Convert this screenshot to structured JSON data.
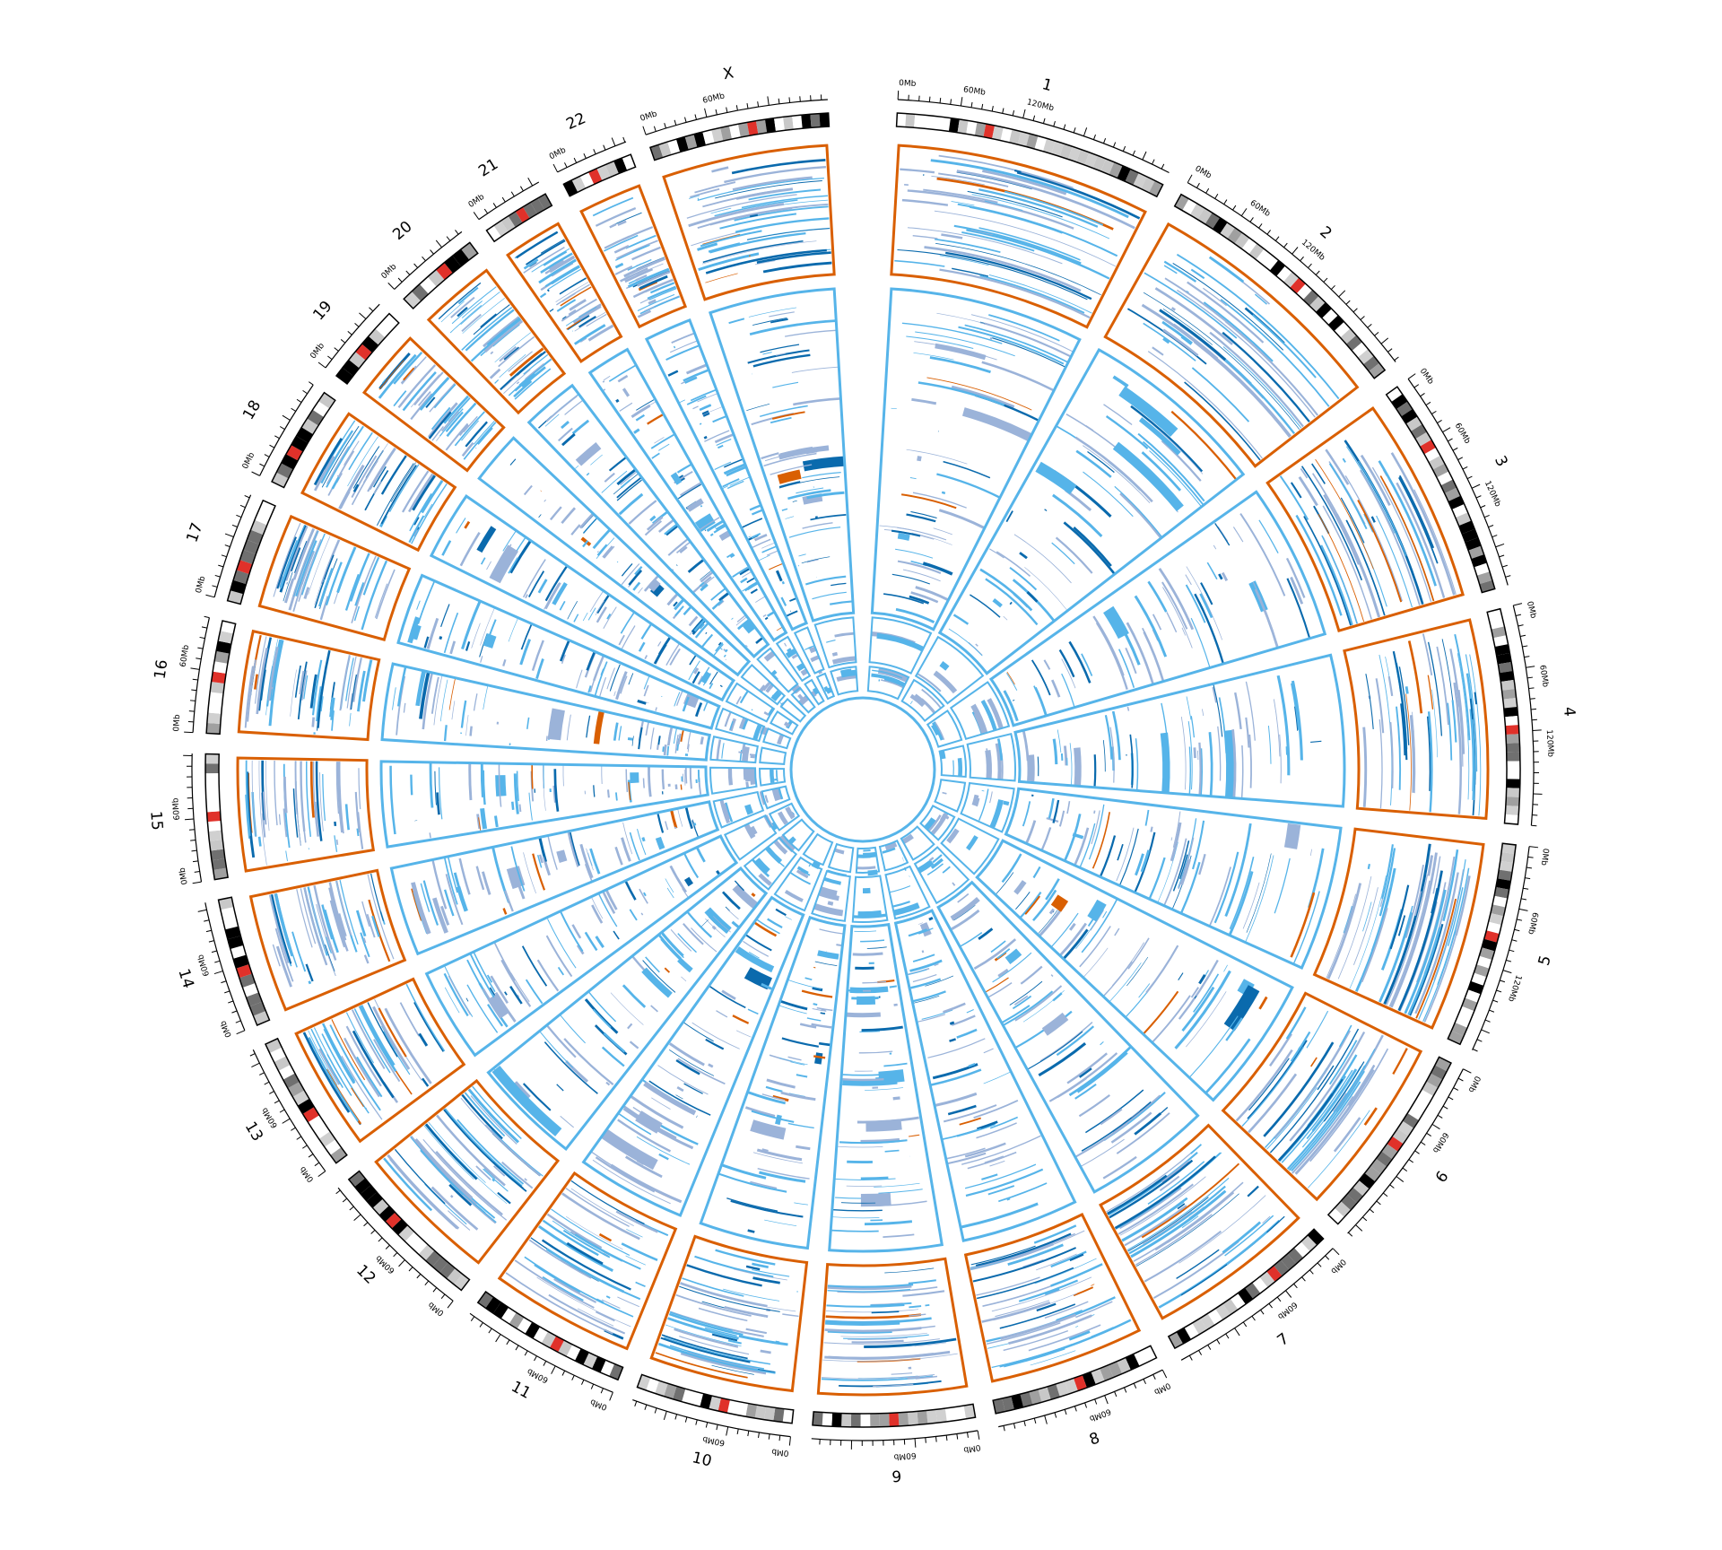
{
  "colors": {
    "orange_track": "#d95f02",
    "blue_track": "#56b4e9",
    "lavender": "#9bb3d9",
    "dark_blue": "#0a6aad",
    "centromere": "#e0312a"
  },
  "chromosomes": [
    {
      "label": "1",
      "length_mb": 248,
      "ticks": [
        "0Mb",
        "60Mb",
        "120Mb"
      ]
    },
    {
      "label": "2",
      "length_mb": 242,
      "ticks": [
        "0Mb",
        "60Mb",
        "120Mb"
      ]
    },
    {
      "label": "3",
      "length_mb": 198,
      "ticks": [
        "0Mb",
        "60Mb",
        "120Mb"
      ]
    },
    {
      "label": "4",
      "length_mb": 190,
      "ticks": [
        "0Mb",
        "60Mb",
        "120Mb"
      ]
    },
    {
      "label": "5",
      "length_mb": 181,
      "ticks": [
        "0Mb",
        "60Mb",
        "120Mb"
      ]
    },
    {
      "label": "6",
      "length_mb": 171,
      "ticks": [
        "0Mb",
        "60Mb"
      ]
    },
    {
      "label": "7",
      "length_mb": 159,
      "ticks": [
        "0Mb",
        "60Mb"
      ]
    },
    {
      "label": "8",
      "length_mb": 145,
      "ticks": [
        "0Mb",
        "60Mb"
      ]
    },
    {
      "label": "9",
      "length_mb": 138,
      "ticks": [
        "0Mb",
        "60Mb"
      ]
    },
    {
      "label": "10",
      "length_mb": 134,
      "ticks": [
        "0Mb",
        "60Mb"
      ]
    },
    {
      "label": "11",
      "length_mb": 135,
      "ticks": [
        "0Mb",
        "60Mb"
      ]
    },
    {
      "label": "12",
      "length_mb": 133,
      "ticks": [
        "0Mb",
        "60Mb"
      ]
    },
    {
      "label": "13",
      "length_mb": 114,
      "ticks": [
        "0Mb",
        "60Mb"
      ]
    },
    {
      "label": "14",
      "length_mb": 107,
      "ticks": [
        "0Mb",
        "60Mb"
      ]
    },
    {
      "label": "15",
      "length_mb": 102,
      "ticks": [
        "0Mb",
        "60Mb"
      ]
    },
    {
      "label": "16",
      "length_mb": 90,
      "ticks": [
        "0Mb",
        "60Mb"
      ]
    },
    {
      "label": "17",
      "length_mb": 83,
      "ticks": [
        "0Mb"
      ]
    },
    {
      "label": "18",
      "length_mb": 80,
      "ticks": [
        "0Mb"
      ]
    },
    {
      "label": "19",
      "length_mb": 59,
      "ticks": [
        "0Mb"
      ]
    },
    {
      "label": "20",
      "length_mb": 64,
      "ticks": [
        "0Mb"
      ]
    },
    {
      "label": "21",
      "length_mb": 47,
      "ticks": [
        "0Mb"
      ]
    },
    {
      "label": "22",
      "length_mb": 51,
      "ticks": [
        "0Mb"
      ]
    },
    {
      "label": "X",
      "length_mb": 156,
      "ticks": [
        "0Mb",
        "60Mb"
      ]
    }
  ]
}
